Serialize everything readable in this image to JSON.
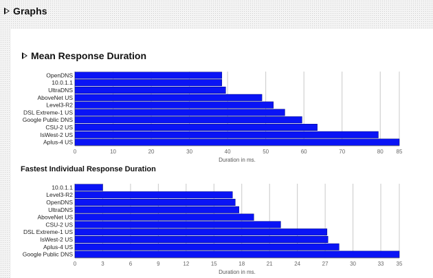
{
  "page": {
    "title": "Graphs"
  },
  "chart_data": [
    {
      "type": "bar",
      "orientation": "horizontal",
      "title": "Mean Response Duration",
      "xlabel": "Duration in ms.",
      "xlim": [
        0,
        85
      ],
      "xticks": [
        0,
        10,
        20,
        30,
        40,
        50,
        60,
        70,
        80,
        85
      ],
      "grid": true,
      "bar_color": "#0a14f5",
      "categories": [
        "OpenDNS",
        "10.0.1.1",
        "UltraDNS",
        "AboveNet US",
        "Level3-R2",
        "DSL Extreme-1 US",
        "Google Public DNS",
        "CSU-2 US",
        "IsWest-2 US",
        "Aplus-4 US"
      ],
      "values": [
        38.5,
        38.5,
        39.5,
        49,
        52,
        55,
        59.5,
        63.5,
        79.5,
        85
      ]
    },
    {
      "type": "bar",
      "orientation": "horizontal",
      "title": "Fastest Individual Response Duration",
      "xlabel": "Duration in ms.",
      "xlim": [
        0,
        35
      ],
      "xticks": [
        0,
        3,
        6,
        9,
        12,
        15,
        18,
        21,
        24,
        27,
        30,
        33,
        35
      ],
      "grid": true,
      "bar_color": "#0a14f5",
      "categories": [
        "10.0.1.1",
        "Level3-R2",
        "OpenDNS",
        "UltraDNS",
        "AboveNet US",
        "CSU-2 US",
        "DSL Extreme-1 US",
        "IsWest-2 US",
        "Aplus-4 US",
        "Google Public DNS"
      ],
      "values": [
        3,
        17,
        17.3,
        17.7,
        19.3,
        22.2,
        27.2,
        27.3,
        28.5,
        35
      ]
    }
  ]
}
